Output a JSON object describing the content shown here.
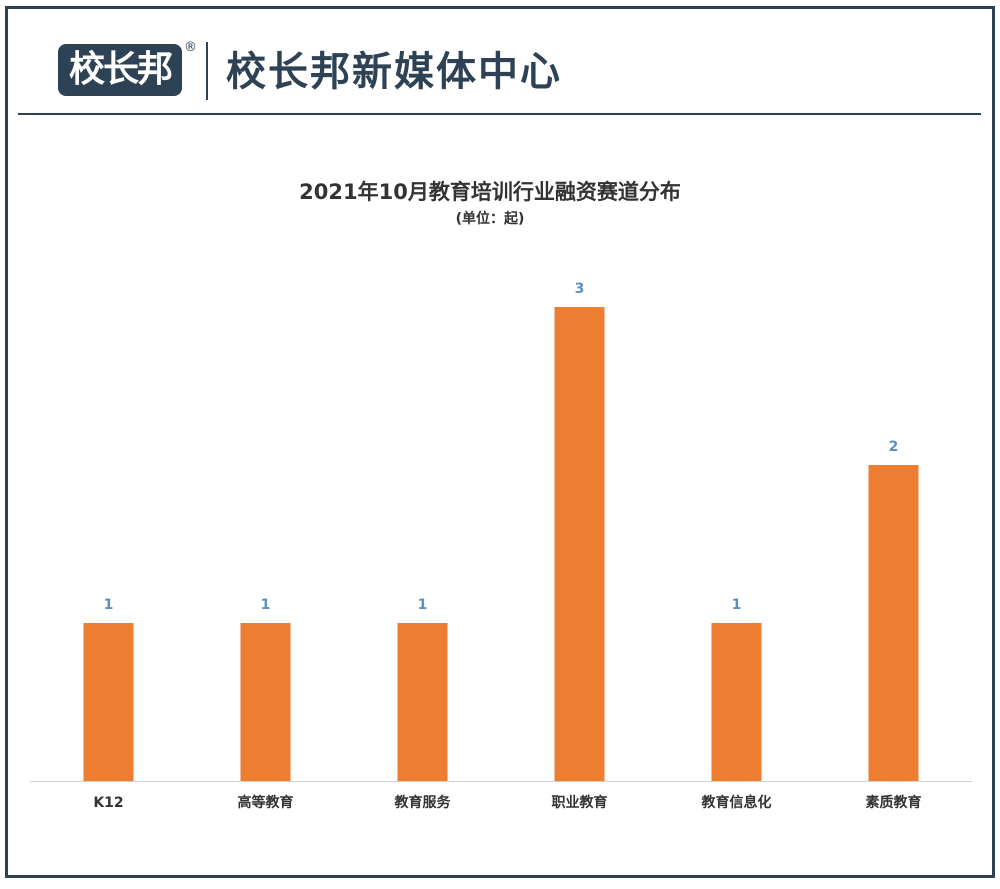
{
  "header": {
    "logo_text": "校长邦",
    "registered_mark": "®",
    "brand_name": "校长邦新媒体中心"
  },
  "colors": {
    "bar": "#ed7d31",
    "label": "#5b8fc2",
    "frame": "#2e4255"
  },
  "chart_data": {
    "type": "bar",
    "title": "2021年10月教育培训行业融资赛道分布",
    "subtitle": "(单位：起)",
    "categories": [
      "K12",
      "高等教育",
      "教育服务",
      "职业教育",
      "教育信息化",
      "素质教育"
    ],
    "values": [
      1,
      1,
      1,
      3,
      1,
      2
    ],
    "xlabel": "",
    "ylabel": "",
    "ylim": [
      0,
      3
    ],
    "grid": false,
    "legend": "none"
  }
}
